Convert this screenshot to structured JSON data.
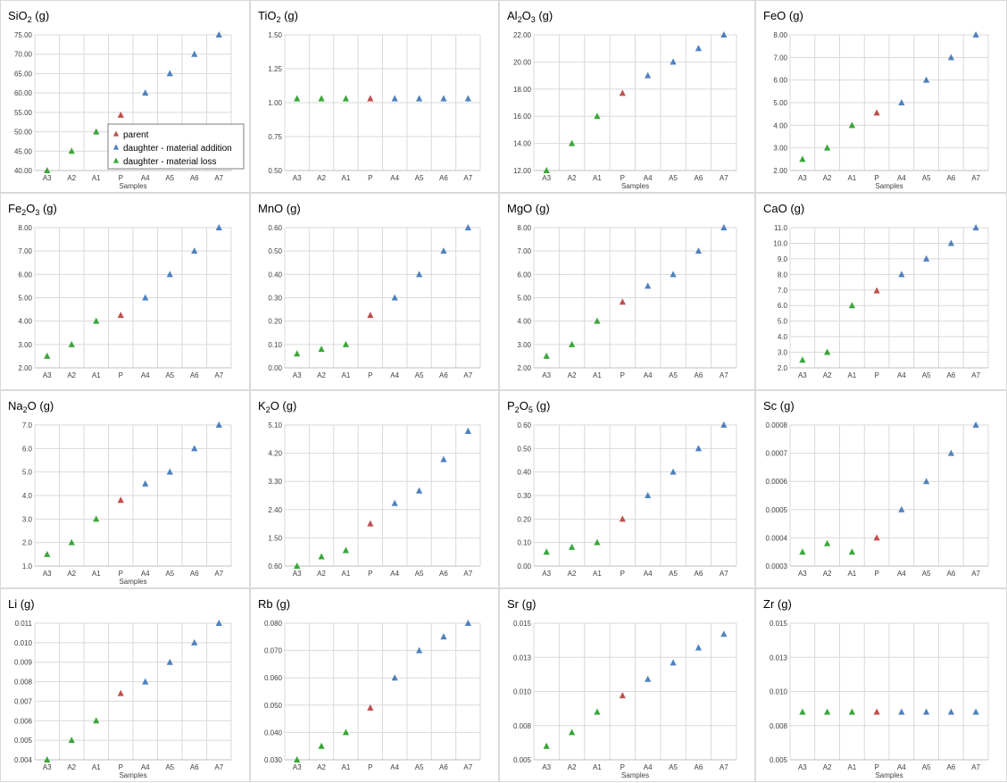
{
  "colors": {
    "parent": "#c0504d",
    "addition": "#4f81bd",
    "loss": "#3aa63a",
    "grid": "#d9d9d9",
    "axis": "#bfbfbf"
  },
  "legend": [
    "parent",
    "daughter - material addition",
    "daughter - material loss"
  ],
  "chart_data": [
    {
      "type": "scatter",
      "title": "SiO2 (g)",
      "title_parts": [
        [
          "SiO",
          ""
        ],
        [
          "2",
          "sub"
        ],
        [
          " (g)",
          ""
        ]
      ],
      "xlabel": "Samples",
      "categories": [
        "A3",
        "A2",
        "A1",
        "P",
        "A4",
        "A5",
        "A6",
        "A7"
      ],
      "values": [
        40,
        45,
        50,
        54.3,
        60,
        65,
        70,
        75
      ],
      "groups": [
        "loss",
        "loss",
        "loss",
        "parent",
        "addition",
        "addition",
        "addition",
        "addition"
      ],
      "ylim": [
        40,
        75
      ],
      "yticks": [
        "40.00",
        "45.00",
        "50.00",
        "55.00",
        "60.00",
        "65.00",
        "70.00",
        "75.00"
      ],
      "legend_position": "center"
    },
    {
      "type": "scatter",
      "title": "TiO2 (g)",
      "title_parts": [
        [
          "TiO",
          ""
        ],
        [
          "2",
          "sub"
        ],
        [
          " (g)",
          ""
        ]
      ],
      "xlabel": "",
      "categories": [
        "A3",
        "A2",
        "A1",
        "P",
        "A4",
        "A5",
        "A6",
        "A7"
      ],
      "values": [
        1.03,
        1.03,
        1.03,
        1.03,
        1.03,
        1.03,
        1.03,
        1.03
      ],
      "groups": [
        "loss",
        "loss",
        "loss",
        "parent",
        "addition",
        "addition",
        "addition",
        "addition"
      ],
      "ylim": [
        0.5,
        1.5
      ],
      "yticks": [
        "0.50",
        "0.75",
        "1.00",
        "1.25",
        "1.50"
      ]
    },
    {
      "type": "scatter",
      "title": "Al2O3 (g)",
      "title_parts": [
        [
          "Al",
          ""
        ],
        [
          "2",
          "sub"
        ],
        [
          "O",
          ""
        ],
        [
          "3",
          "sub"
        ],
        [
          " (g)",
          ""
        ]
      ],
      "xlabel": "Samples",
      "categories": [
        "A3",
        "A2",
        "A1",
        "P",
        "A4",
        "A5",
        "A6",
        "A7"
      ],
      "values": [
        12,
        14,
        16,
        17.7,
        19,
        20,
        21,
        22
      ],
      "groups": [
        "loss",
        "loss",
        "loss",
        "parent",
        "addition",
        "addition",
        "addition",
        "addition"
      ],
      "ylim": [
        12,
        22
      ],
      "yticks": [
        "12.00",
        "14.00",
        "16.00",
        "18.00",
        "20.00",
        "22.00"
      ]
    },
    {
      "type": "scatter",
      "title": "FeO  (g)",
      "title_parts": [
        [
          "FeO  (g)",
          ""
        ]
      ],
      "xlabel": "Samples",
      "categories": [
        "A3",
        "A2",
        "A1",
        "P",
        "A4",
        "A5",
        "A6",
        "A7"
      ],
      "values": [
        2.5,
        3,
        4,
        4.55,
        5,
        6,
        7,
        8
      ],
      "groups": [
        "loss",
        "loss",
        "loss",
        "parent",
        "addition",
        "addition",
        "addition",
        "addition"
      ],
      "ylim": [
        2,
        8
      ],
      "yticks": [
        "2.00",
        "3.00",
        "4.00",
        "5.00",
        "6.00",
        "7.00",
        "8.00"
      ]
    },
    {
      "type": "scatter",
      "title": "Fe2O3 (g)",
      "title_parts": [
        [
          "Fe",
          ""
        ],
        [
          "2",
          "sub"
        ],
        [
          "O",
          ""
        ],
        [
          "3",
          "sub"
        ],
        [
          " (g)",
          ""
        ]
      ],
      "xlabel": "",
      "categories": [
        "A3",
        "A2",
        "A1",
        "P",
        "A4",
        "A5",
        "A6",
        "A7"
      ],
      "values": [
        2.5,
        3,
        4,
        4.25,
        5,
        6,
        7,
        8
      ],
      "groups": [
        "loss",
        "loss",
        "loss",
        "parent",
        "addition",
        "addition",
        "addition",
        "addition"
      ],
      "ylim": [
        2,
        8
      ],
      "yticks": [
        "2.00",
        "3.00",
        "4.00",
        "5.00",
        "6.00",
        "7.00",
        "8.00"
      ]
    },
    {
      "type": "scatter",
      "title": "MnO (g)",
      "title_parts": [
        [
          "MnO (g)",
          ""
        ]
      ],
      "xlabel": "",
      "categories": [
        "A3",
        "A2",
        "A1",
        "P",
        "A4",
        "A5",
        "A6",
        "A7"
      ],
      "values": [
        0.06,
        0.08,
        0.1,
        0.225,
        0.3,
        0.4,
        0.5,
        0.6
      ],
      "groups": [
        "loss",
        "loss",
        "loss",
        "parent",
        "addition",
        "addition",
        "addition",
        "addition"
      ],
      "ylim": [
        0,
        0.6
      ],
      "yticks": [
        "0.00",
        "0.10",
        "0.20",
        "0.30",
        "0.40",
        "0.50",
        "0.60"
      ]
    },
    {
      "type": "scatter",
      "title": "MgO (g)",
      "title_parts": [
        [
          "MgO (g)",
          ""
        ]
      ],
      "xlabel": "",
      "categories": [
        "A3",
        "A2",
        "A1",
        "P",
        "A4",
        "A5",
        "A6",
        "A7"
      ],
      "values": [
        2.5,
        3,
        4,
        4.82,
        5.5,
        6,
        7,
        8
      ],
      "groups": [
        "loss",
        "loss",
        "loss",
        "parent",
        "addition",
        "addition",
        "addition",
        "addition"
      ],
      "ylim": [
        2,
        8
      ],
      "yticks": [
        "2.00",
        "3.00",
        "4.00",
        "5.00",
        "6.00",
        "7.00",
        "8.00"
      ]
    },
    {
      "type": "scatter",
      "title": "CaO (g)",
      "title_parts": [
        [
          "CaO (g)",
          ""
        ]
      ],
      "xlabel": "",
      "categories": [
        "A3",
        "A2",
        "A1",
        "P",
        "A4",
        "A5",
        "A6",
        "A7"
      ],
      "values": [
        2.5,
        3,
        6,
        6.95,
        8,
        9,
        10,
        11
      ],
      "groups": [
        "loss",
        "loss",
        "loss",
        "parent",
        "addition",
        "addition",
        "addition",
        "addition"
      ],
      "ylim": [
        2,
        11
      ],
      "yticks": [
        "2.0",
        "3.0",
        "4.0",
        "5.0",
        "6.0",
        "7.0",
        "8.0",
        "9.0",
        "10.0",
        "11.0"
      ]
    },
    {
      "type": "scatter",
      "title": "Na2O (g)",
      "title_parts": [
        [
          "Na",
          ""
        ],
        [
          "2",
          "sub"
        ],
        [
          "O (g)",
          ""
        ]
      ],
      "xlabel": "Samples",
      "categories": [
        "A3",
        "A2",
        "A1",
        "P",
        "A4",
        "A5",
        "A6",
        "A7"
      ],
      "values": [
        1.5,
        2,
        3,
        3.8,
        4.5,
        5,
        6,
        7
      ],
      "groups": [
        "loss",
        "loss",
        "loss",
        "parent",
        "addition",
        "addition",
        "addition",
        "addition"
      ],
      "ylim": [
        1,
        7
      ],
      "yticks": [
        "1.0",
        "2.0",
        "3.0",
        "4.0",
        "5.0",
        "6.0",
        "7.0"
      ]
    },
    {
      "type": "scatter",
      "title": "K2O (g)",
      "title_parts": [
        [
          "K",
          ""
        ],
        [
          "2",
          "sub"
        ],
        [
          "O (g)",
          ""
        ]
      ],
      "xlabel": "",
      "categories": [
        "A3",
        "A2",
        "A1",
        "P",
        "A4",
        "A5",
        "A6",
        "A7"
      ],
      "values": [
        0.6,
        0.9,
        1.1,
        1.95,
        2.6,
        3,
        4,
        4.9
      ],
      "groups": [
        "loss",
        "loss",
        "loss",
        "parent",
        "addition",
        "addition",
        "addition",
        "addition"
      ],
      "ylim": [
        0.6,
        5.1
      ],
      "yticks": [
        "0.60",
        "1.50",
        "2.40",
        "3.30",
        "4.20",
        "5.10"
      ]
    },
    {
      "type": "scatter",
      "title": "P2O5 (g)",
      "title_parts": [
        [
          "P",
          ""
        ],
        [
          "2",
          "sub"
        ],
        [
          "O",
          ""
        ],
        [
          "5",
          "sub"
        ],
        [
          " (g)",
          ""
        ]
      ],
      "xlabel": "",
      "categories": [
        "A3",
        "A2",
        "A1",
        "P",
        "A4",
        "A5",
        "A6",
        "A7"
      ],
      "values": [
        0.06,
        0.08,
        0.1,
        0.2,
        0.3,
        0.4,
        0.5,
        0.6
      ],
      "groups": [
        "loss",
        "loss",
        "loss",
        "parent",
        "addition",
        "addition",
        "addition",
        "addition"
      ],
      "ylim": [
        0,
        0.6
      ],
      "yticks": [
        "0.00",
        "0.10",
        "0.20",
        "0.30",
        "0.40",
        "0.50",
        "0.60"
      ]
    },
    {
      "type": "scatter",
      "title": "Sc (g)",
      "title_parts": [
        [
          "Sc (g)",
          ""
        ]
      ],
      "xlabel": "",
      "categories": [
        "A3",
        "A2",
        "A1",
        "P",
        "A4",
        "A5",
        "A6",
        "A7"
      ],
      "values": [
        0.00035,
        0.00038,
        0.00035,
        0.0004,
        0.0005,
        0.0006,
        0.0007,
        0.0008
      ],
      "groups": [
        "loss",
        "loss",
        "loss",
        "parent",
        "addition",
        "addition",
        "addition",
        "addition"
      ],
      "ylim": [
        0.0003,
        0.0008
      ],
      "yticks": [
        "0.0003",
        "0.0004",
        "0.0005",
        "0.0006",
        "0.0007",
        "0.0008"
      ]
    },
    {
      "type": "scatter",
      "title": "Li (g)",
      "title_parts": [
        [
          "Li (g)",
          ""
        ]
      ],
      "xlabel": "Samples",
      "categories": [
        "A3",
        "A2",
        "A1",
        "P",
        "A4",
        "A5",
        "A6",
        "A7"
      ],
      "values": [
        0.004,
        0.005,
        0.006,
        0.0074,
        0.008,
        0.009,
        0.01,
        0.011
      ],
      "groups": [
        "loss",
        "loss",
        "loss",
        "parent",
        "addition",
        "addition",
        "addition",
        "addition"
      ],
      "ylim": [
        0.004,
        0.011
      ],
      "yticks": [
        "0.004",
        "0.005",
        "0.006",
        "0.007",
        "0.008",
        "0.009",
        "0.010",
        "0.011"
      ]
    },
    {
      "type": "scatter",
      "title": "Rb (g)",
      "title_parts": [
        [
          "Rb (g)",
          ""
        ]
      ],
      "xlabel": "",
      "categories": [
        "A3",
        "A2",
        "A1",
        "P",
        "A4",
        "A5",
        "A6",
        "A7"
      ],
      "values": [
        0.03,
        0.035,
        0.04,
        0.049,
        0.06,
        0.07,
        0.075,
        0.08
      ],
      "groups": [
        "loss",
        "loss",
        "loss",
        "parent",
        "addition",
        "addition",
        "addition",
        "addition"
      ],
      "ylim": [
        0.03,
        0.08
      ],
      "yticks": [
        "0.030",
        "0.040",
        "0.050",
        "0.060",
        "0.070",
        "0.080"
      ]
    },
    {
      "type": "scatter",
      "title": "Sr (g)",
      "title_parts": [
        [
          "Sr (g)",
          ""
        ]
      ],
      "xlabel": "Samples",
      "categories": [
        "A3",
        "A2",
        "A1",
        "P",
        "A4",
        "A5",
        "A6",
        "A7"
      ],
      "values": [
        0.006,
        0.007,
        0.0085,
        0.0097,
        0.0109,
        0.0121,
        0.0132,
        0.0142
      ],
      "groups": [
        "loss",
        "loss",
        "loss",
        "parent",
        "addition",
        "addition",
        "addition",
        "addition"
      ],
      "ylim": [
        0.005,
        0.015
      ],
      "yticks": [
        "0.005",
        "0.008",
        "0.010",
        "0.013",
        "0.015"
      ]
    },
    {
      "type": "scatter",
      "title": "Zr (g)",
      "title_parts": [
        [
          "Zr (g)",
          ""
        ]
      ],
      "xlabel": "Samples",
      "categories": [
        "A3",
        "A2",
        "A1",
        "P",
        "A4",
        "A5",
        "A6",
        "A7"
      ],
      "values": [
        0.0085,
        0.0085,
        0.0085,
        0.0085,
        0.0085,
        0.0085,
        0.0085,
        0.0085
      ],
      "groups": [
        "loss",
        "loss",
        "loss",
        "parent",
        "addition",
        "addition",
        "addition",
        "addition"
      ],
      "ylim": [
        0.005,
        0.015
      ],
      "yticks": [
        "0.005",
        "0.008",
        "0.010",
        "0.013",
        "0.015"
      ]
    }
  ]
}
